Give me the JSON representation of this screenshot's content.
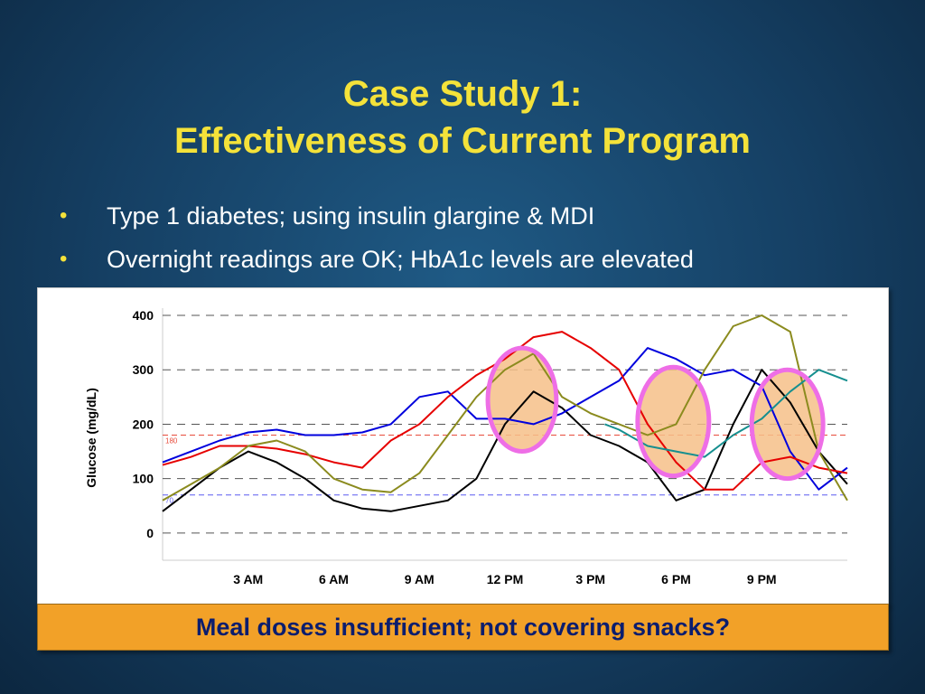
{
  "slide": {
    "title_line1": "Case Study 1:",
    "title_line2": "Effectiveness of Current Program",
    "bullets": [
      "Type 1 diabetes; using insulin glargine & MDI",
      "Overnight readings are OK; HbA1c levels are elevated"
    ],
    "bullet_symbol": "•",
    "banner": "Meal doses insufficient; not covering snacks?"
  },
  "colors": {
    "title": "#f4e23a",
    "bullet": "#f4e23a",
    "banner_bg": "#f2a128",
    "banner_text": "#0b1d6e",
    "highlight_fill": "#f6c088",
    "highlight_stroke": "#ee6ee6"
  },
  "chart_data": {
    "type": "line",
    "ylabel": "Glucose (mg/dL)",
    "ylim": [
      -50,
      400
    ],
    "yticks": [
      0,
      100,
      200,
      300,
      400
    ],
    "xlim": [
      0,
      24
    ],
    "xticks": [
      {
        "x": 3,
        "label": "3 AM"
      },
      {
        "x": 6,
        "label": "6 AM"
      },
      {
        "x": 9,
        "label": "9 AM"
      },
      {
        "x": 12,
        "label": "12 PM"
      },
      {
        "x": 15,
        "label": "3 PM"
      },
      {
        "x": 18,
        "label": "6 PM"
      },
      {
        "x": 21,
        "label": "9 PM"
      }
    ],
    "grid": "horizontal dashed",
    "target_lines": [
      {
        "value": 180,
        "label": "180",
        "color": "#e74c3c"
      },
      {
        "value": 70,
        "label": "70",
        "color": "#5a5af0"
      }
    ],
    "series": [
      {
        "color": "#000000",
        "points": [
          [
            0,
            40
          ],
          [
            0.5,
            60
          ],
          [
            1,
            80
          ],
          [
            2,
            120
          ],
          [
            3,
            150
          ],
          [
            4,
            130
          ],
          [
            5,
            100
          ],
          [
            6,
            60
          ],
          [
            7,
            45
          ],
          [
            8,
            40
          ],
          [
            9,
            50
          ],
          [
            10,
            60
          ],
          [
            11,
            100
          ],
          [
            12,
            200
          ],
          [
            13,
            260
          ],
          [
            14,
            230
          ],
          [
            15,
            180
          ],
          [
            16,
            160
          ],
          [
            17,
            130
          ],
          [
            18,
            60
          ],
          [
            19,
            80
          ],
          [
            20,
            200
          ],
          [
            21,
            300
          ],
          [
            22,
            240
          ],
          [
            23,
            150
          ],
          [
            24,
            90
          ]
        ]
      },
      {
        "color": "#0000dd",
        "points": [
          [
            0,
            130
          ],
          [
            1,
            150
          ],
          [
            2,
            170
          ],
          [
            3,
            185
          ],
          [
            4,
            190
          ],
          [
            5,
            180
          ],
          [
            6,
            180
          ],
          [
            7,
            185
          ],
          [
            8,
            200
          ],
          [
            9,
            250
          ],
          [
            10,
            260
          ],
          [
            11,
            210
          ],
          [
            12,
            210
          ],
          [
            13,
            200
          ],
          [
            14,
            220
          ],
          [
            15,
            250
          ],
          [
            16,
            280
          ],
          [
            17,
            340
          ],
          [
            18,
            320
          ],
          [
            19,
            290
          ],
          [
            20,
            300
          ],
          [
            21,
            270
          ],
          [
            22,
            150
          ],
          [
            23,
            80
          ],
          [
            24,
            120
          ]
        ]
      },
      {
        "color": "#e60000",
        "points": [
          [
            0,
            125
          ],
          [
            1,
            140
          ],
          [
            2,
            160
          ],
          [
            3,
            160
          ],
          [
            4,
            155
          ],
          [
            5,
            145
          ],
          [
            6,
            130
          ],
          [
            7,
            120
          ],
          [
            8,
            170
          ],
          [
            9,
            200
          ],
          [
            10,
            250
          ],
          [
            11,
            290
          ],
          [
            12,
            320
          ],
          [
            13,
            360
          ],
          [
            14,
            370
          ],
          [
            15,
            340
          ],
          [
            16,
            300
          ],
          [
            17,
            200
          ],
          [
            18,
            130
          ],
          [
            19,
            80
          ],
          [
            20,
            80
          ],
          [
            21,
            130
          ],
          [
            22,
            140
          ],
          [
            23,
            120
          ],
          [
            24,
            110
          ]
        ]
      },
      {
        "color": "#8b8b1e",
        "points": [
          [
            0,
            60
          ],
          [
            1,
            90
          ],
          [
            2,
            120
          ],
          [
            3,
            160
          ],
          [
            4,
            170
          ],
          [
            5,
            150
          ],
          [
            6,
            100
          ],
          [
            7,
            80
          ],
          [
            8,
            75
          ],
          [
            9,
            110
          ],
          [
            10,
            180
          ],
          [
            11,
            250
          ],
          [
            12,
            300
          ],
          [
            13,
            330
          ],
          [
            14,
            250
          ],
          [
            15,
            220
          ],
          [
            16,
            200
          ],
          [
            17,
            180
          ],
          [
            18,
            200
          ],
          [
            19,
            300
          ],
          [
            20,
            380
          ],
          [
            21,
            400
          ],
          [
            22,
            370
          ],
          [
            23,
            150
          ],
          [
            24,
            60
          ]
        ]
      },
      {
        "color": "#168f8f",
        "points": [
          [
            15.5,
            200
          ],
          [
            16,
            190
          ],
          [
            17,
            160
          ],
          [
            18,
            150
          ],
          [
            19,
            140
          ],
          [
            20,
            180
          ],
          [
            21,
            210
          ],
          [
            22,
            260
          ],
          [
            23,
            300
          ],
          [
            24,
            280
          ]
        ]
      }
    ],
    "highlights": [
      {
        "x_center": 12.6,
        "y_center": 245,
        "x_radius": 1.2,
        "y_radius": 95
      },
      {
        "x_center": 17.9,
        "y_center": 205,
        "x_radius": 1.25,
        "y_radius": 100
      },
      {
        "x_center": 21.9,
        "y_center": 200,
        "x_radius": 1.25,
        "y_radius": 100
      }
    ]
  }
}
